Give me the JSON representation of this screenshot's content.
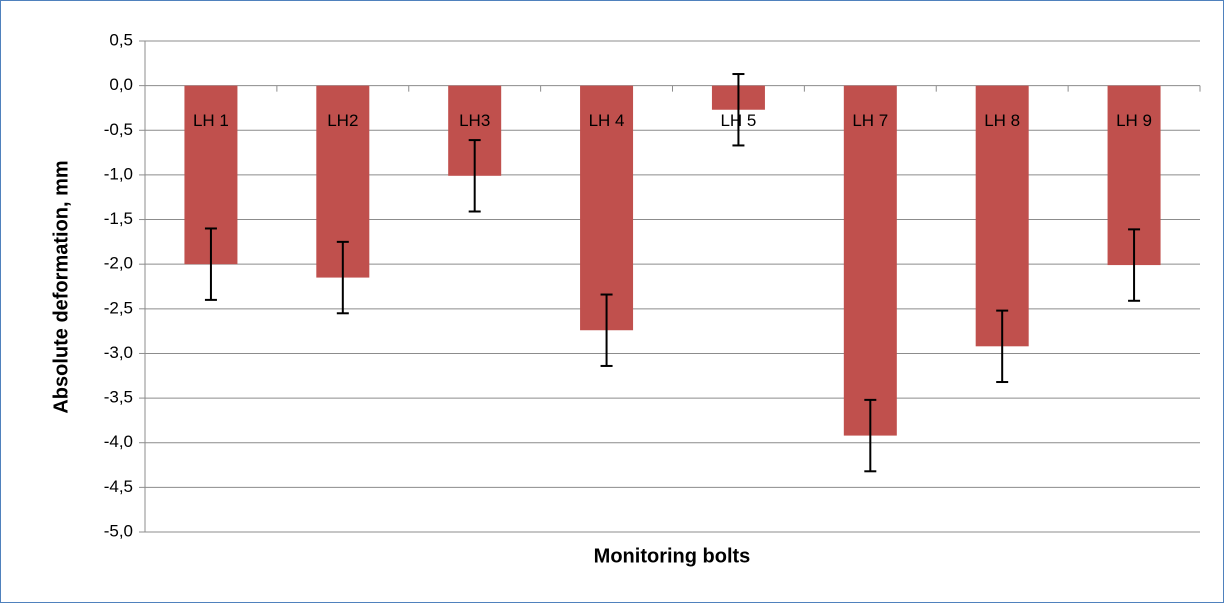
{
  "chart_data": {
    "type": "bar",
    "x_label": "Monitoring bolts",
    "y_label": "Absolute deformation, mm",
    "categories": [
      "LH 1",
      "LH2",
      "LH3",
      "LH 4",
      "LH 5",
      "LH 7",
      "LH 8",
      "LH 9"
    ],
    "values": [
      -2.0,
      -2.15,
      -1.01,
      -2.74,
      -0.27,
      -3.92,
      -2.92,
      -2.01
    ],
    "errors": [
      0.4,
      0.4,
      0.4,
      0.4,
      0.4,
      0.4,
      0.4,
      0.4
    ],
    "color": "#c0504d",
    "ylim": [
      -5.0,
      0.5
    ],
    "yticks": [
      {
        "value": 0.5,
        "label": "0,5"
      },
      {
        "value": 0.0,
        "label": "0,0"
      },
      {
        "value": -0.5,
        "label": "-0,5"
      },
      {
        "value": -1.0,
        "label": "-1,0"
      },
      {
        "value": -1.5,
        "label": "-1,5"
      },
      {
        "value": -2.0,
        "label": "-2,0"
      },
      {
        "value": -2.5,
        "label": "-2,5"
      },
      {
        "value": -3.0,
        "label": "-3,0"
      },
      {
        "value": -3.5,
        "label": "-3,5"
      },
      {
        "value": -4.0,
        "label": "-4,0"
      },
      {
        "value": -4.5,
        "label": "-4,5"
      },
      {
        "value": -5.0,
        "label": "-5,0"
      }
    ],
    "grid": true
  }
}
